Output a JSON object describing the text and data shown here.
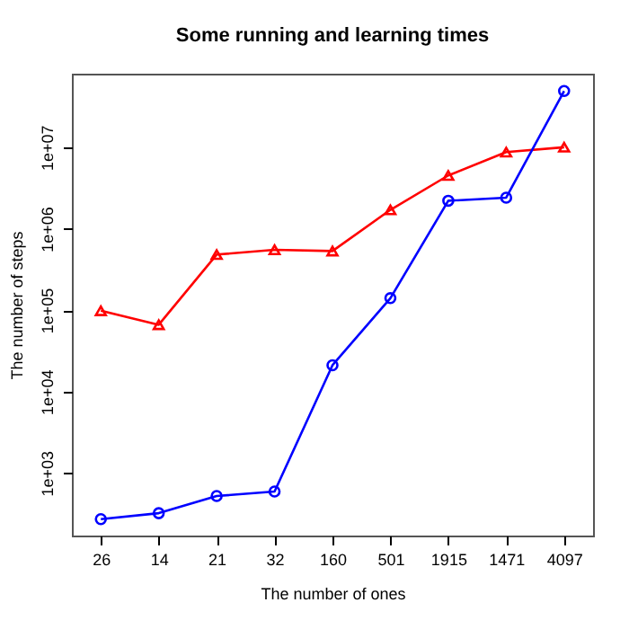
{
  "chart_data": {
    "type": "line",
    "title": "Some running and learning times",
    "xlabel": "The number of ones",
    "ylabel": "The number of steps",
    "categories": [
      "26",
      "14",
      "21",
      "32",
      "160",
      "501",
      "1915",
      "1471",
      "4097"
    ],
    "series": [
      {
        "color": "#ff0000",
        "marker": "triangle",
        "values": [
          98000,
          66000,
          480000,
          550000,
          530000,
          1700000,
          4500000,
          8700000,
          10000000
        ]
      },
      {
        "color": "#0000ff",
        "marker": "circle",
        "values": [
          270,
          320,
          520,
          590,
          21000,
          140000,
          2200000,
          2400000,
          49000000
        ]
      }
    ],
    "log": "y",
    "ylim": [
      170,
      80000000
    ],
    "yticks": [
      {
        "value": 1000,
        "label": "1e+03"
      },
      {
        "value": 10000,
        "label": "1e+04"
      },
      {
        "value": 100000,
        "label": "1e+05"
      },
      {
        "value": 1000000,
        "label": "1e+06"
      },
      {
        "value": 10000000,
        "label": "1e+07"
      }
    ],
    "grid": false,
    "line_style": "solid"
  }
}
